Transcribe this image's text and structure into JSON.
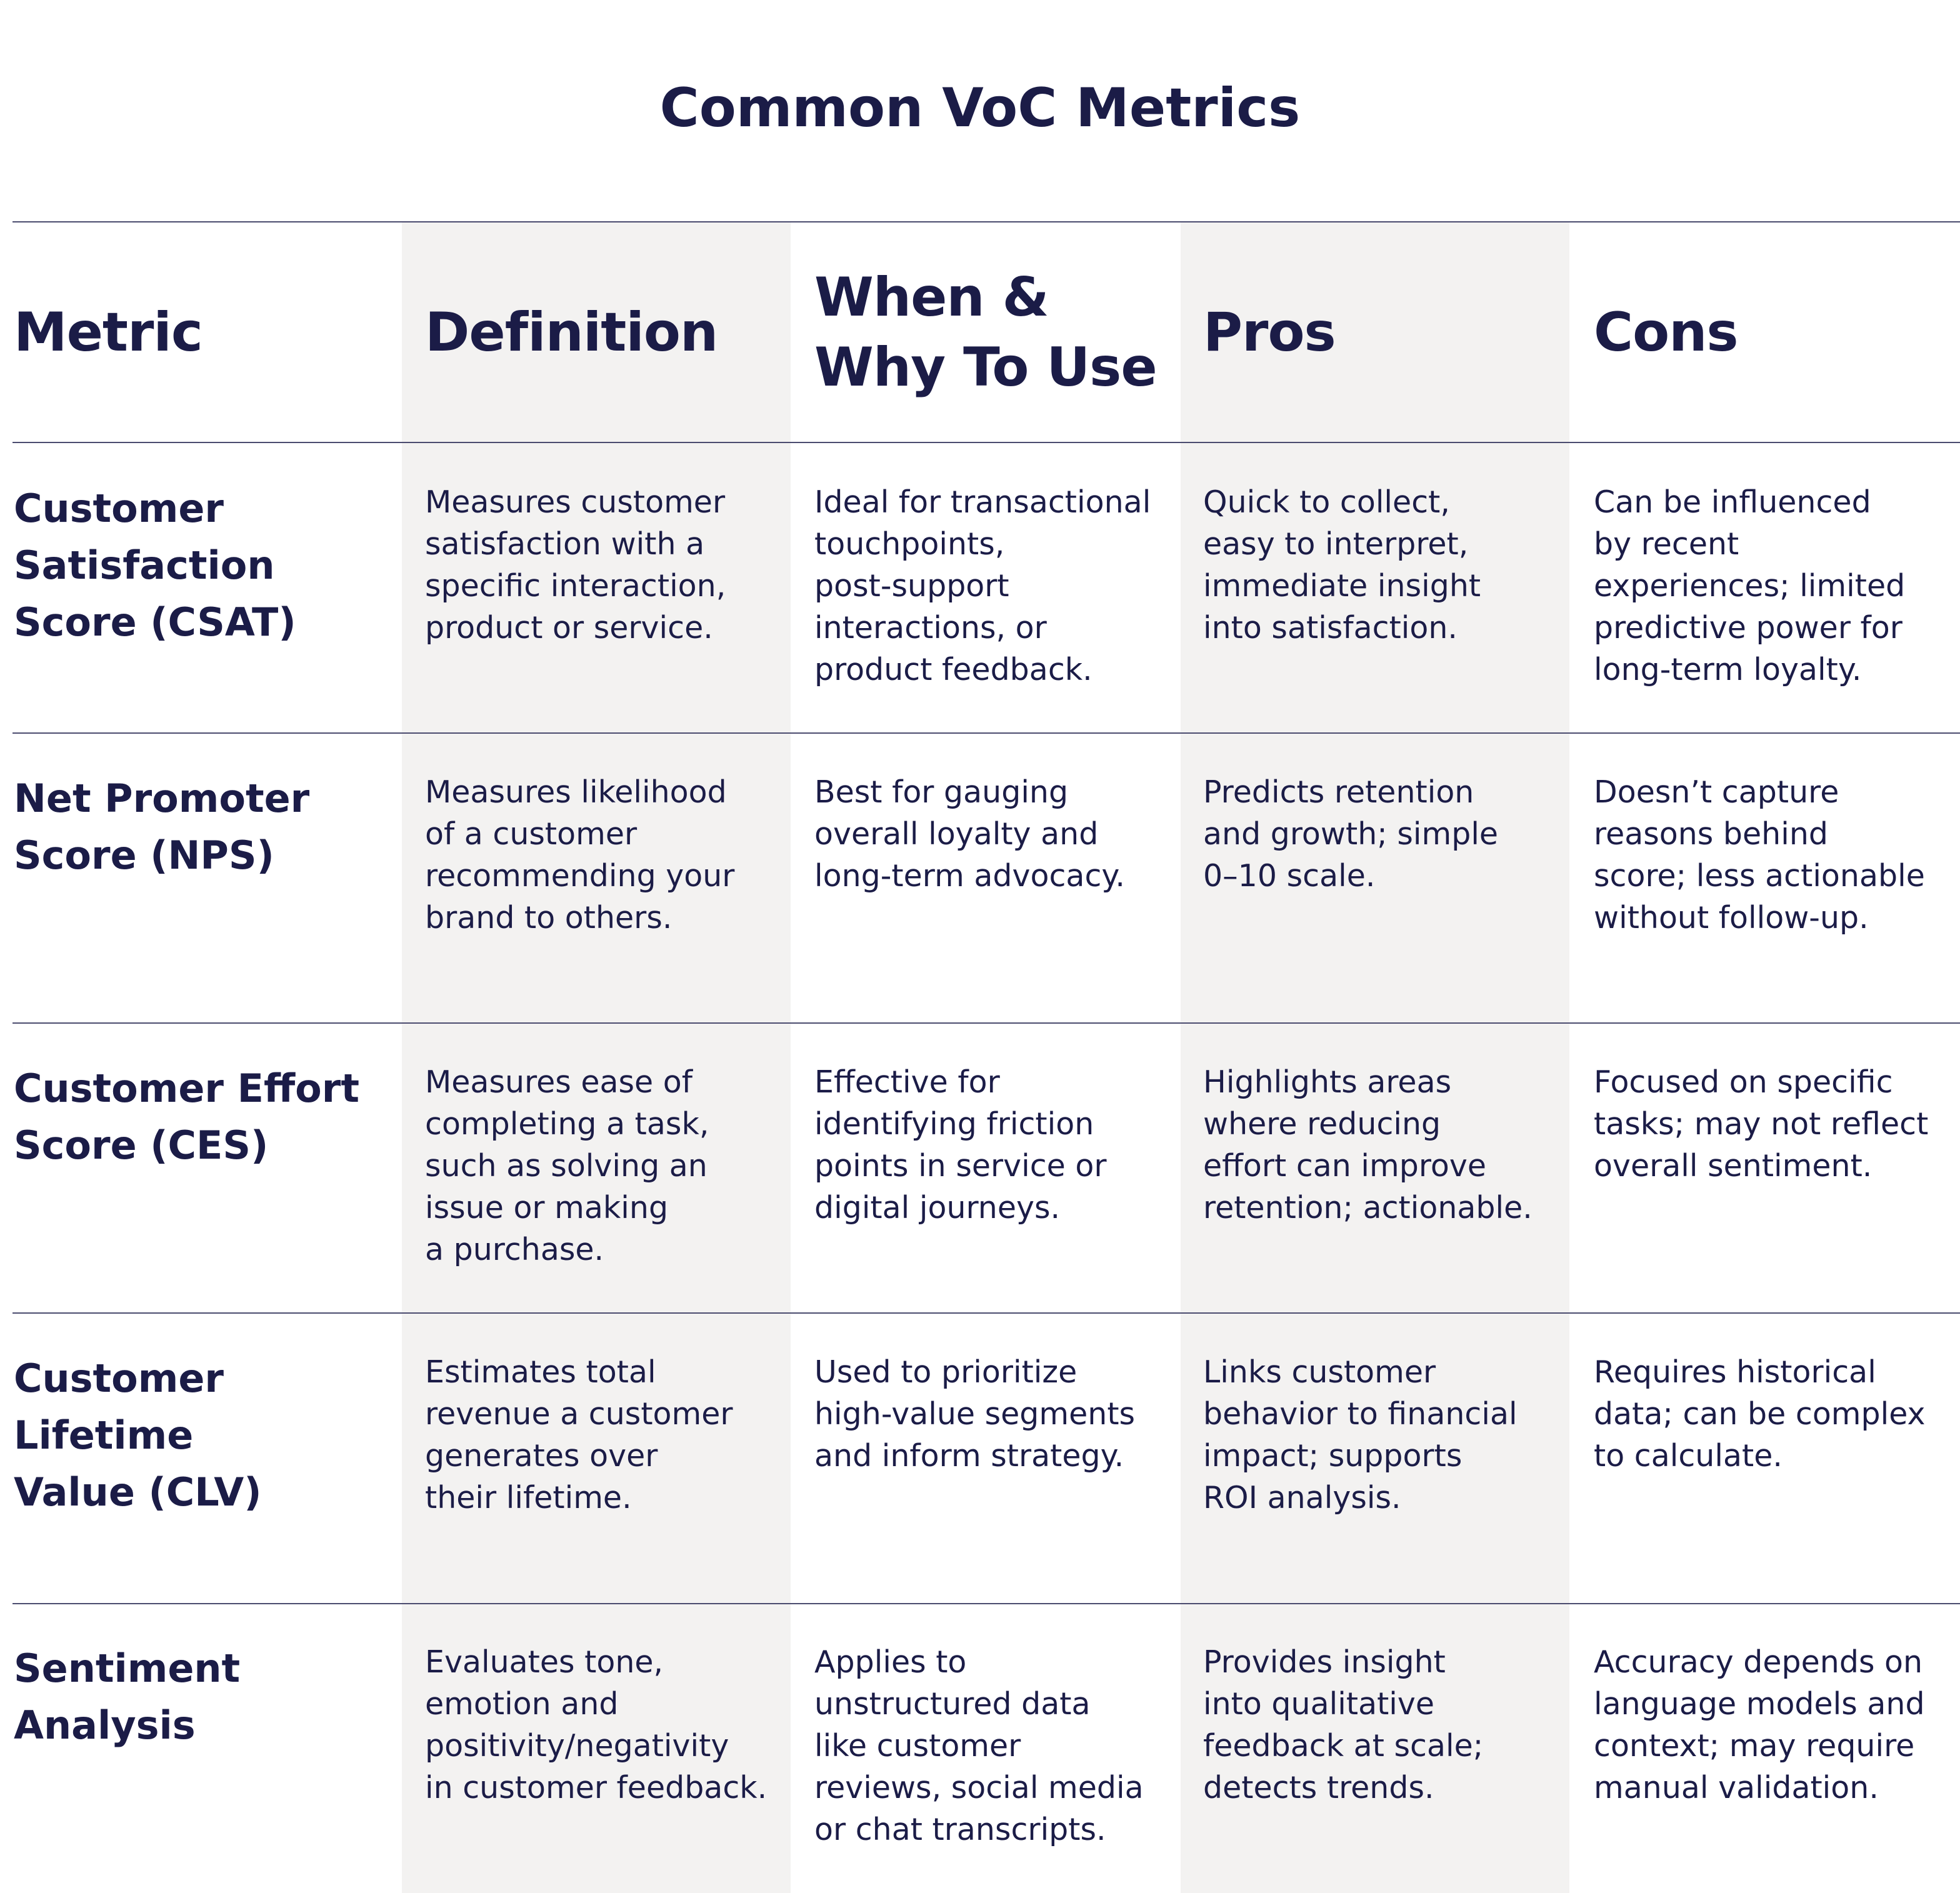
{
  "title": "Common VoC Metrics",
  "columns": [
    "Metric",
    "Definition",
    "When &\nWhy To Use",
    "Pros",
    "Cons"
  ],
  "rows": [
    {
      "metric": "Customer\nSatisfaction\nScore (CSAT)",
      "definition": "Measures customer\nsatisfaction with a\nspecific interaction,\nproduct or service.",
      "when_why": "Ideal for transactional\ntouchpoints,\npost-support\ninteractions, or\nproduct feedback.",
      "pros": "Quick to collect,\neasy to interpret,\nimmediate insight\ninto satisfaction.",
      "cons": "Can be influenced\nby recent\nexperiences; limited\npredictive power for\nlong-term loyalty."
    },
    {
      "metric": "Net Promoter\nScore (NPS)",
      "definition": "Measures likelihood\nof a customer\nrecommending your\nbrand to others.",
      "when_why": "Best for gauging\noverall loyalty and\nlong-term advocacy.",
      "pros": "Predicts retention\nand growth; simple\n0–10 scale.",
      "cons": "Doesn’t capture\nreasons behind\nscore; less actionable\nwithout follow-up."
    },
    {
      "metric": "Customer Effort\nScore (CES)",
      "definition": "Measures ease of\ncompleting a task,\nsuch as solving an\nissue or making\na purchase.",
      "when_why": "Effective for\nidentifying friction\npoints in service or\ndigital journeys.",
      "pros": "Highlights areas\nwhere reducing\neffort can improve\nretention; actionable.",
      "cons": "Focused on specific\ntasks; may not reflect\noverall sentiment."
    },
    {
      "metric": "Customer\nLifetime\nValue (CLV)",
      "definition": "Estimates total\nrevenue a customer\ngenerates over\ntheir lifetime.",
      "when_why": "Used to prioritize\nhigh-value segments\nand inform strategy.",
      "pros": "Links customer\nbehavior to financial\nimpact; supports\nROI analysis.",
      "cons": "Requires historical\ndata; can be complex\nto calculate."
    },
    {
      "metric": "Sentiment\nAnalysis",
      "definition": "Evaluates tone,\nemotion and\npositivity/negativity\nin customer feedback.",
      "when_why": "Applies to\nunstructured data\nlike customer\nreviews, social media\nor chat transcripts.",
      "pros": "Provides insight\ninto qualitative\nfeedback at scale;\ndetects trends.",
      "cons": "Accuracy depends on\nlanguage models and\ncontext; may require\nmanual validation."
    }
  ]
}
